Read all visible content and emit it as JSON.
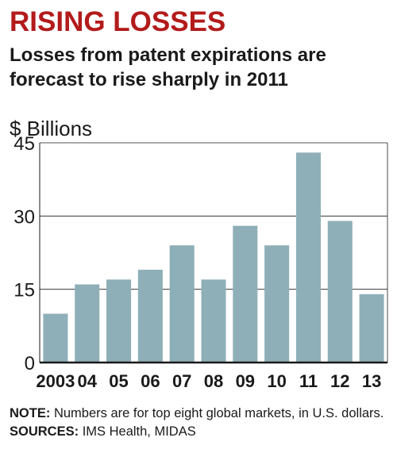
{
  "headline": "RISING LOSSES",
  "subtitle": "Losses from patent expirations are forecast to rise sharply in 2011",
  "note": {
    "note_label": "NOTE:",
    "note_text": "Numbers are for top eight global markets, in U.S. dollars.",
    "sources_label": "SOURCES:",
    "sources_text": "IMS Health, MIDAS"
  },
  "colors": {
    "headline": "#b31b1b",
    "bar": "#8fafb8",
    "axis": "#1a1a1a",
    "grid": "#1a1a1a"
  },
  "chart_data": {
    "type": "bar",
    "title": "RISING LOSSES",
    "ylabel": "$ Billions",
    "xlabel": "",
    "categories": [
      "2003",
      "04",
      "05",
      "06",
      "07",
      "08",
      "09",
      "10",
      "11",
      "12",
      "13"
    ],
    "values": [
      10,
      16,
      17,
      19,
      24,
      17,
      28,
      24,
      43,
      29,
      14
    ],
    "ylim": [
      0,
      45
    ],
    "yticks": [
      0,
      15,
      30,
      45
    ],
    "grid": true,
    "legend": "none"
  }
}
